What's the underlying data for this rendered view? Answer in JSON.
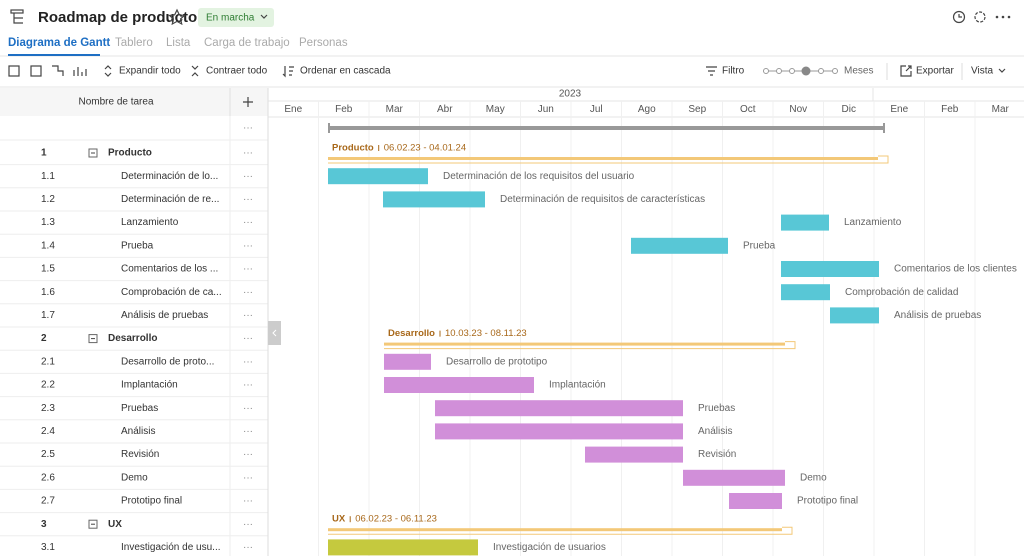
{
  "header": {
    "title": "Roadmap de producto",
    "status": "En marcha",
    "tabs": [
      "Diagrama de Gantt",
      "Tablero",
      "Lista",
      "Carga de trabajo",
      "Personas"
    ]
  },
  "toolbar": {
    "expand": "Expandir todo",
    "collapse": "Contraer todo",
    "cascade": "Ordenar en cascada",
    "filter": "Filtro",
    "zoom": "Meses",
    "export": "Exportar",
    "view": "Vista"
  },
  "grid": {
    "column_header": "Nombre de tarea",
    "rows": [
      {
        "id": "1",
        "name": "Producto",
        "group": true,
        "range": "06.02.23 - 04.01.24"
      },
      {
        "id": "1.1",
        "name": "Determinación de lo...",
        "bar_label": "Determinación de los requisitos del usuario"
      },
      {
        "id": "1.2",
        "name": "Determinación de re...",
        "bar_label": "Determinación de requisitos de características"
      },
      {
        "id": "1.3",
        "name": "Lanzamiento",
        "bar_label": "Lanzamiento"
      },
      {
        "id": "1.4",
        "name": "Prueba",
        "bar_label": "Prueba"
      },
      {
        "id": "1.5",
        "name": "Comentarios de los ...",
        "bar_label": "Comentarios de los clientes"
      },
      {
        "id": "1.6",
        "name": "Comprobación de ca...",
        "bar_label": "Comprobación de calidad"
      },
      {
        "id": "1.7",
        "name": "Análisis de pruebas",
        "bar_label": "Análisis de pruebas"
      },
      {
        "id": "2",
        "name": "Desarrollo",
        "group": true,
        "range": "10.03.23 - 08.11.23"
      },
      {
        "id": "2.1",
        "name": "Desarrollo de proto...",
        "bar_label": "Desarrollo de prototipo"
      },
      {
        "id": "2.2",
        "name": "Implantación",
        "bar_label": "Implantación"
      },
      {
        "id": "2.3",
        "name": "Pruebas",
        "bar_label": "Pruebas"
      },
      {
        "id": "2.4",
        "name": "Análisis",
        "bar_label": "Análisis"
      },
      {
        "id": "2.5",
        "name": "Revisión",
        "bar_label": "Revisión"
      },
      {
        "id": "2.6",
        "name": "Demo",
        "bar_label": "Demo"
      },
      {
        "id": "2.7",
        "name": "Prototipo final",
        "bar_label": "Prototipo final"
      },
      {
        "id": "3",
        "name": "UX",
        "group": true,
        "range": "06.02.23 - 06.11.23"
      },
      {
        "id": "3.1",
        "name": "Investigación de usu...",
        "bar_label": "Investigación de usuarios"
      }
    ]
  },
  "timeline": {
    "year": "2023",
    "months": [
      "Ene",
      "Feb",
      "Mar",
      "Abr",
      "May",
      "Jun",
      "Jul",
      "Ago",
      "Sep",
      "Oct",
      "Nov",
      "Dic",
      "Ene",
      "Feb",
      "Mar"
    ]
  }
}
